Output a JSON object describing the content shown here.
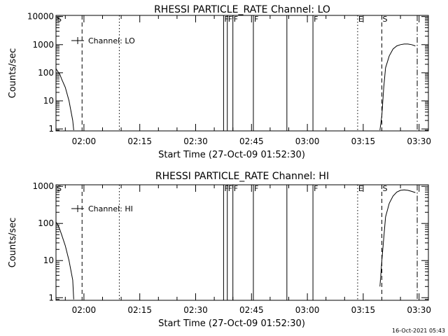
{
  "colors": {
    "background": "#ffffff",
    "foreground": "#000000"
  },
  "timestamp": "16-Oct-2021 05:43",
  "chart_data": [
    {
      "type": "line",
      "title": "RHESSI PARTICLE_RATE Channel: LO",
      "xlabel": "Start Time (27-Oct-09 01:52:30)",
      "ylabel": "Counts/sec",
      "yscale": "log",
      "legend": "Channel: LO",
      "legend_placement": "top-left",
      "xlim": [
        "01:52:30",
        "03:32:30"
      ],
      "ylim": [
        0.85,
        11000
      ],
      "xticks": [
        "02:00",
        "02:15",
        "02:30",
        "02:45",
        "03:00",
        "03:15",
        "03:30"
      ],
      "yticks": [
        "1",
        "10",
        "100",
        "1000",
        "10000"
      ],
      "series": [
        {
          "segments": [
            [
              [
                "01:52:30",
                140
              ],
              [
                "01:53:00",
                110
              ],
              [
                "01:53:30",
                90
              ],
              [
                "01:54:00",
                60
              ],
              [
                "01:55:00",
                30
              ],
              [
                "01:56:00",
                10
              ],
              [
                "01:57:00",
                2
              ],
              [
                "01:57:15",
                0.9
              ]
            ],
            [
              [
                "03:19:30",
                0.9
              ],
              [
                "03:20:00",
                3
              ],
              [
                "03:20:30",
                30
              ],
              [
                "03:21:00",
                150
              ],
              [
                "03:22:00",
                400
              ],
              [
                "03:23:00",
                700
              ],
              [
                "03:24:00",
                900
              ],
              [
                "03:25:00",
                1000
              ],
              [
                "03:26:00",
                1050
              ],
              [
                "03:27:00",
                1050
              ],
              [
                "03:28:00",
                1000
              ],
              [
                "03:29:00",
                900
              ]
            ]
          ]
        }
      ],
      "markers": [
        {
          "label": "S",
          "time": "01:52:30",
          "style": "solid-axis"
        },
        {
          "time": "01:59:30",
          "style": "dashed"
        },
        {
          "time": "02:09:30",
          "style": "dotted"
        },
        {
          "label": "F",
          "time": "02:37:30",
          "style": "solid"
        },
        {
          "label": "F",
          "time": "02:38:30",
          "style": "solid"
        },
        {
          "label": "F",
          "time": "02:40:00",
          "style": "solid"
        },
        {
          "label": "F",
          "time": "02:45:30",
          "style": "solid"
        },
        {
          "time": "02:54:30",
          "style": "solid"
        },
        {
          "label": "F",
          "time": "03:01:30",
          "style": "solid"
        },
        {
          "label": "E",
          "time": "03:13:30",
          "style": "dotted"
        },
        {
          "label": "S",
          "time": "03:20:00",
          "style": "dashed"
        },
        {
          "time": "03:29:30",
          "style": "dashdot"
        }
      ]
    },
    {
      "type": "line",
      "title": "RHESSI PARTICLE_RATE Channel: HI",
      "xlabel": "Start Time (27-Oct-09 01:52:30)",
      "ylabel": "Counts/sec",
      "yscale": "log",
      "legend": "Channel: HI",
      "legend_placement": "top-left",
      "xlim": [
        "01:52:30",
        "03:32:30"
      ],
      "ylim": [
        0.85,
        1100
      ],
      "xticks": [
        "02:00",
        "02:15",
        "02:30",
        "02:45",
        "03:00",
        "03:15",
        "03:30"
      ],
      "yticks": [
        "1",
        "10",
        "100",
        "1000"
      ],
      "series": [
        {
          "segments": [
            [
              [
                "01:52:30",
                110
              ],
              [
                "01:53:00",
                90
              ],
              [
                "01:53:30",
                70
              ],
              [
                "01:54:00",
                50
              ],
              [
                "01:55:00",
                25
              ],
              [
                "01:56:00",
                10
              ],
              [
                "01:57:00",
                3
              ],
              [
                "01:57:15",
                0.9
              ]
            ],
            [
              [
                "03:19:30",
                2
              ],
              [
                "03:20:00",
                10
              ],
              [
                "03:20:30",
                40
              ],
              [
                "03:21:00",
                150
              ],
              [
                "03:22:00",
                350
              ],
              [
                "03:23:00",
                550
              ],
              [
                "03:24:00",
                700
              ],
              [
                "03:25:00",
                780
              ],
              [
                "03:26:00",
                800
              ],
              [
                "03:27:00",
                780
              ],
              [
                "03:28:00",
                730
              ],
              [
                "03:29:00",
                680
              ]
            ]
          ]
        }
      ],
      "markers": [
        {
          "label": "S",
          "time": "01:52:30",
          "style": "solid-axis"
        },
        {
          "time": "01:59:30",
          "style": "dashed"
        },
        {
          "time": "02:09:30",
          "style": "dotted"
        },
        {
          "label": "F",
          "time": "02:37:30",
          "style": "solid"
        },
        {
          "label": "F",
          "time": "02:38:30",
          "style": "solid"
        },
        {
          "label": "F",
          "time": "02:40:00",
          "style": "solid"
        },
        {
          "label": "F",
          "time": "02:45:30",
          "style": "solid"
        },
        {
          "time": "02:54:30",
          "style": "solid"
        },
        {
          "label": "F",
          "time": "03:01:30",
          "style": "solid"
        },
        {
          "label": "E",
          "time": "03:13:30",
          "style": "dotted"
        },
        {
          "label": "S",
          "time": "03:20:00",
          "style": "dashed"
        },
        {
          "time": "03:29:30",
          "style": "dashdot"
        }
      ]
    }
  ]
}
